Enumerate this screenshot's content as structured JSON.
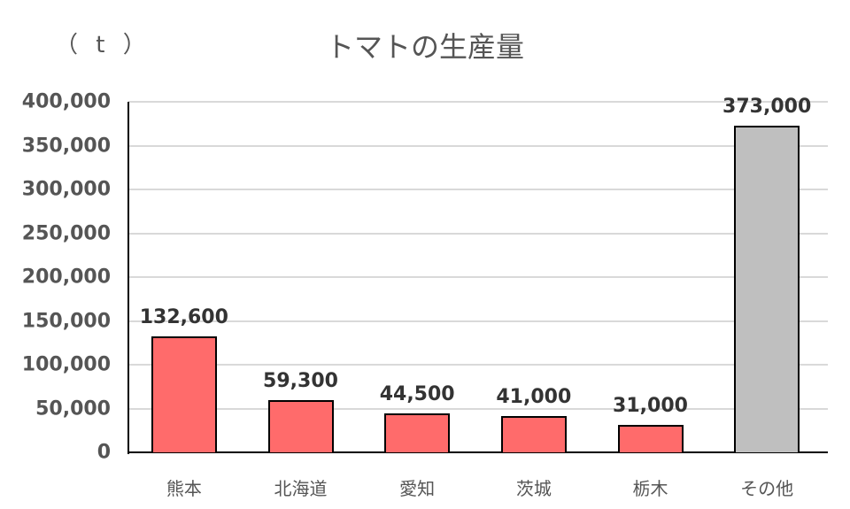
{
  "chart_data": {
    "type": "bar",
    "title": "トマトの生産量",
    "unit_label": "（ t ）",
    "xlabel": "",
    "ylabel": "（t）",
    "ylim": [
      0,
      400000
    ],
    "yticks": [
      "0",
      "50,000",
      "100,000",
      "150,000",
      "200,000",
      "250,000",
      "300,000",
      "350,000",
      "400,000"
    ],
    "grid": true,
    "legend": null,
    "categories": [
      "熊本",
      "北海道",
      "愛知",
      "茨城",
      "栃木",
      "その他"
    ],
    "values": [
      132600,
      59300,
      44500,
      41000,
      31000,
      373000
    ],
    "data_labels": [
      "132,600",
      "59,300",
      "44,500",
      "41,000",
      "31,000",
      "373,000"
    ],
    "colors": [
      "#ff6b6b",
      "#ff6b6b",
      "#ff6b6b",
      "#ff6b6b",
      "#ff6b6b",
      "#bfbfbf"
    ]
  }
}
